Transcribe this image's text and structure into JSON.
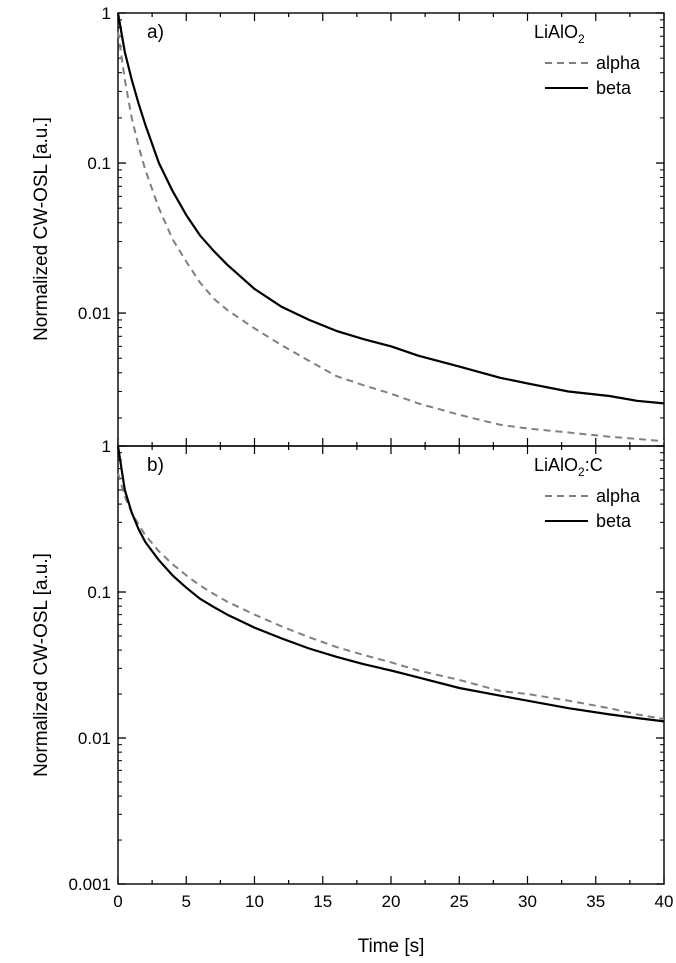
{
  "x_axis": {
    "label": "Time [s]",
    "ticks": [
      "0",
      "5",
      "10",
      "15",
      "20",
      "25",
      "30",
      "35",
      "40"
    ]
  },
  "chart_data": [
    {
      "type": "line",
      "panel_label": "a)",
      "legend_title": "LiAlO",
      "legend_title_subscript": "2",
      "legend_title_suffix": "",
      "legend_placement": "top-right",
      "ylabel": "Normalized CW-OSL [a.u.]",
      "xlabel": "",
      "y_scale": "log",
      "ylim": [
        0.0013,
        1
      ],
      "xlim": [
        0,
        40
      ],
      "y_ticks": [
        1,
        0.1,
        0.01
      ],
      "y_tick_labels": [
        "1",
        "0.1",
        "0.01"
      ],
      "grid": false,
      "x": [
        0,
        0.5,
        1,
        1.5,
        2,
        3,
        4,
        5,
        6,
        7,
        8,
        10,
        12,
        14,
        16,
        18,
        20,
        22,
        25,
        28,
        30,
        33,
        36,
        38,
        40
      ],
      "series": [
        {
          "name": "alpha",
          "color": "#808080",
          "style": "dashed",
          "values": [
            0.75,
            0.36,
            0.2,
            0.13,
            0.09,
            0.05,
            0.031,
            0.022,
            0.016,
            0.0125,
            0.0105,
            0.0079,
            0.0061,
            0.0048,
            0.0038,
            0.0033,
            0.0029,
            0.0025,
            0.0021,
            0.0018,
            0.0017,
            0.0016,
            0.0015,
            0.00145,
            0.0014
          ]
        },
        {
          "name": "beta",
          "color": "#000000",
          "style": "solid",
          "values": [
            1.0,
            0.55,
            0.36,
            0.25,
            0.18,
            0.1,
            0.065,
            0.045,
            0.033,
            0.026,
            0.021,
            0.0145,
            0.011,
            0.009,
            0.0076,
            0.0067,
            0.006,
            0.0052,
            0.0044,
            0.0037,
            0.0034,
            0.003,
            0.0028,
            0.0026,
            0.0025
          ]
        }
      ]
    },
    {
      "type": "line",
      "panel_label": "b)",
      "legend_title": "LiAlO",
      "legend_title_subscript": "2",
      "legend_title_suffix": ":C",
      "legend_placement": "top-right",
      "ylabel": "Normalized CW-OSL [a.u.]",
      "xlabel": "Time [s]",
      "y_scale": "log",
      "ylim": [
        0.001,
        1
      ],
      "xlim": [
        0,
        40
      ],
      "y_ticks": [
        1,
        0.1,
        0.01,
        0.001
      ],
      "y_tick_labels": [
        "1",
        "0.1",
        "0.01",
        "0.001"
      ],
      "grid": false,
      "x": [
        0,
        0.5,
        1,
        1.5,
        2,
        3,
        4,
        5,
        6,
        7,
        8,
        10,
        12,
        14,
        16,
        18,
        20,
        22,
        25,
        28,
        30,
        33,
        36,
        38,
        40
      ],
      "series": [
        {
          "name": "alpha",
          "color": "#808080",
          "style": "dashed",
          "values": [
            0.65,
            0.45,
            0.35,
            0.29,
            0.245,
            0.19,
            0.155,
            0.13,
            0.111,
            0.097,
            0.086,
            0.07,
            0.058,
            0.049,
            0.042,
            0.037,
            0.033,
            0.029,
            0.025,
            0.021,
            0.02,
            0.018,
            0.016,
            0.0145,
            0.0135
          ]
        },
        {
          "name": "beta",
          "color": "#000000",
          "style": "solid",
          "values": [
            1.0,
            0.5,
            0.35,
            0.27,
            0.22,
            0.165,
            0.13,
            0.107,
            0.09,
            0.079,
            0.07,
            0.057,
            0.048,
            0.041,
            0.036,
            0.032,
            0.029,
            0.026,
            0.022,
            0.0195,
            0.018,
            0.016,
            0.0145,
            0.0137,
            0.013
          ]
        }
      ]
    }
  ]
}
